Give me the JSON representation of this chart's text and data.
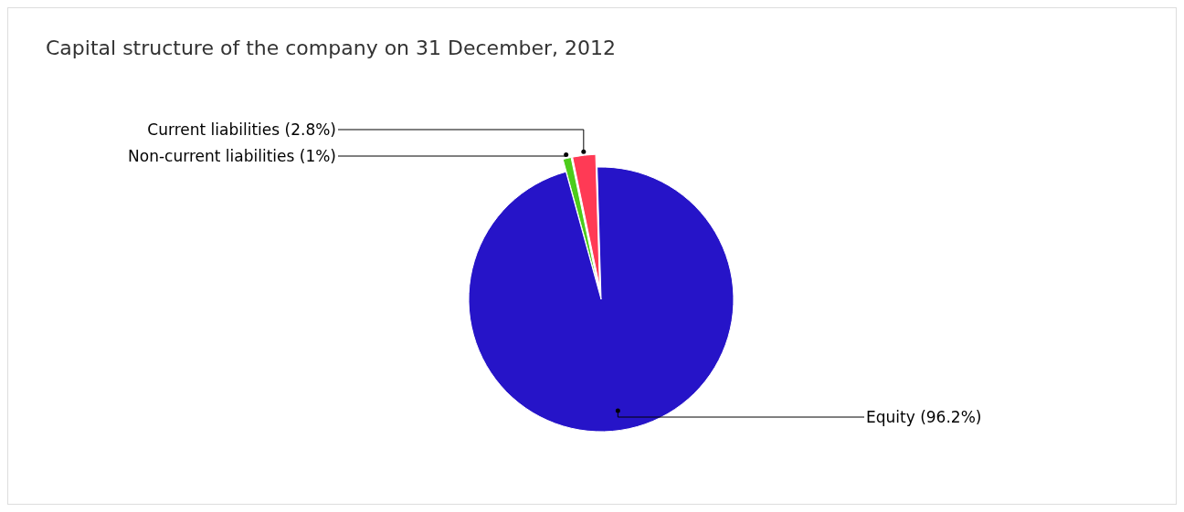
{
  "chart_data": {
    "type": "pie",
    "title": "Capital structure of the company on 31 December, 2012",
    "categories": [
      "Current liabilities",
      "Non-current liabilities",
      "Equity"
    ],
    "values": [
      2.8,
      1,
      96.2
    ],
    "value_labels": [
      "(2.8%)",
      "(1%)",
      "(96.2%)"
    ],
    "colors": [
      "#ff3a55",
      "#4ccc1a",
      "#2614c8"
    ]
  }
}
